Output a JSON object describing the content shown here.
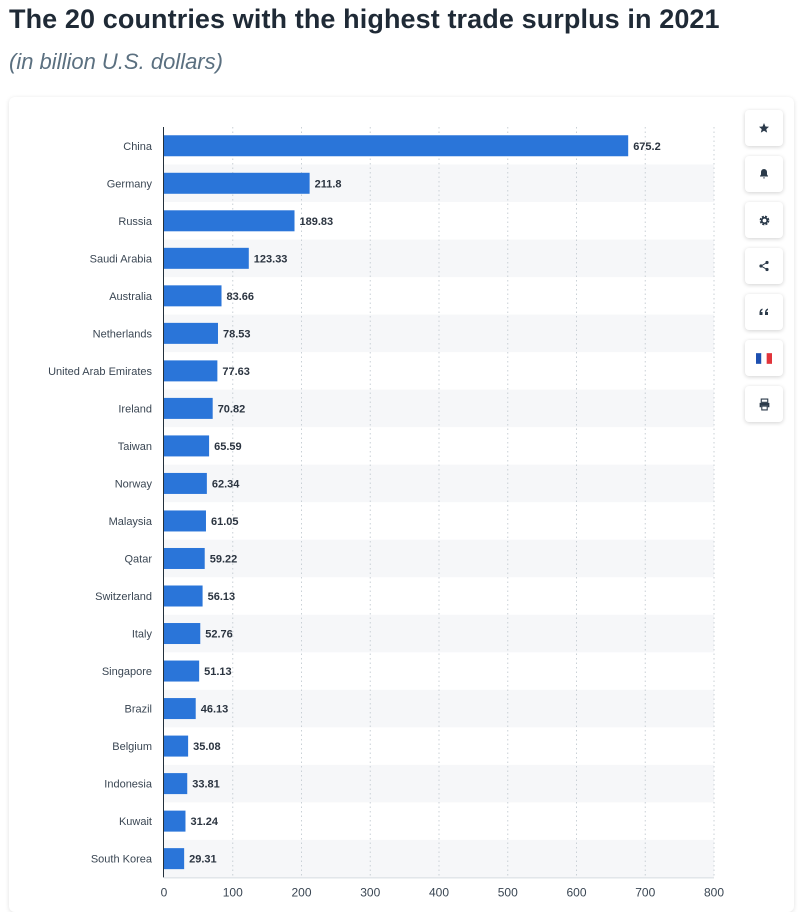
{
  "header": {
    "title": "The 20 countries with the highest trade surplus in 2021",
    "subtitle": "(in billion U.S. dollars)"
  },
  "toolbar": {
    "buttons": [
      {
        "name": "favorite",
        "icon": "star-icon"
      },
      {
        "name": "notification",
        "icon": "bell-icon"
      },
      {
        "name": "settings",
        "icon": "gear-icon"
      },
      {
        "name": "share",
        "icon": "share-icon"
      },
      {
        "name": "cite",
        "icon": "quote-icon"
      },
      {
        "name": "language",
        "icon": "french-flag-icon"
      },
      {
        "name": "print",
        "icon": "printer-icon"
      }
    ]
  },
  "colors": {
    "bar": "#2a75d9",
    "stripe": "#f6f7f9",
    "grid": "#c9d0d6",
    "axis": "#23303c",
    "label": "#3a4653",
    "value_label": "#2b3440"
  },
  "chart_data": {
    "type": "bar",
    "orientation": "horizontal",
    "categories": [
      "China",
      "Germany",
      "Russia",
      "Saudi Arabia",
      "Australia",
      "Netherlands",
      "United Arab Emirates",
      "Ireland",
      "Taiwan",
      "Norway",
      "Malaysia",
      "Qatar",
      "Switzerland",
      "Italy",
      "Singapore",
      "Brazil",
      "Belgium",
      "Indonesia",
      "Kuwait",
      "South Korea"
    ],
    "values": [
      675.2,
      211.8,
      189.83,
      123.33,
      83.66,
      78.53,
      77.63,
      70.82,
      65.59,
      62.34,
      61.05,
      59.22,
      56.13,
      52.76,
      51.13,
      46.13,
      35.08,
      33.81,
      31.24,
      29.31
    ],
    "value_labels": [
      "675.2",
      "211.8",
      "189.83",
      "123.33",
      "83.66",
      "78.53",
      "77.63",
      "70.82",
      "65.59",
      "62.34",
      "61.05",
      "59.22",
      "56.13",
      "52.76",
      "51.13",
      "46.13",
      "35.08",
      "33.81",
      "31.24",
      "29.31"
    ],
    "xlim": [
      0,
      800
    ],
    "xticks": [
      0,
      100,
      200,
      300,
      400,
      500,
      600,
      700,
      800
    ],
    "xlabel": "",
    "ylabel": "",
    "grid": "vertical-dotted",
    "legend": "none"
  }
}
